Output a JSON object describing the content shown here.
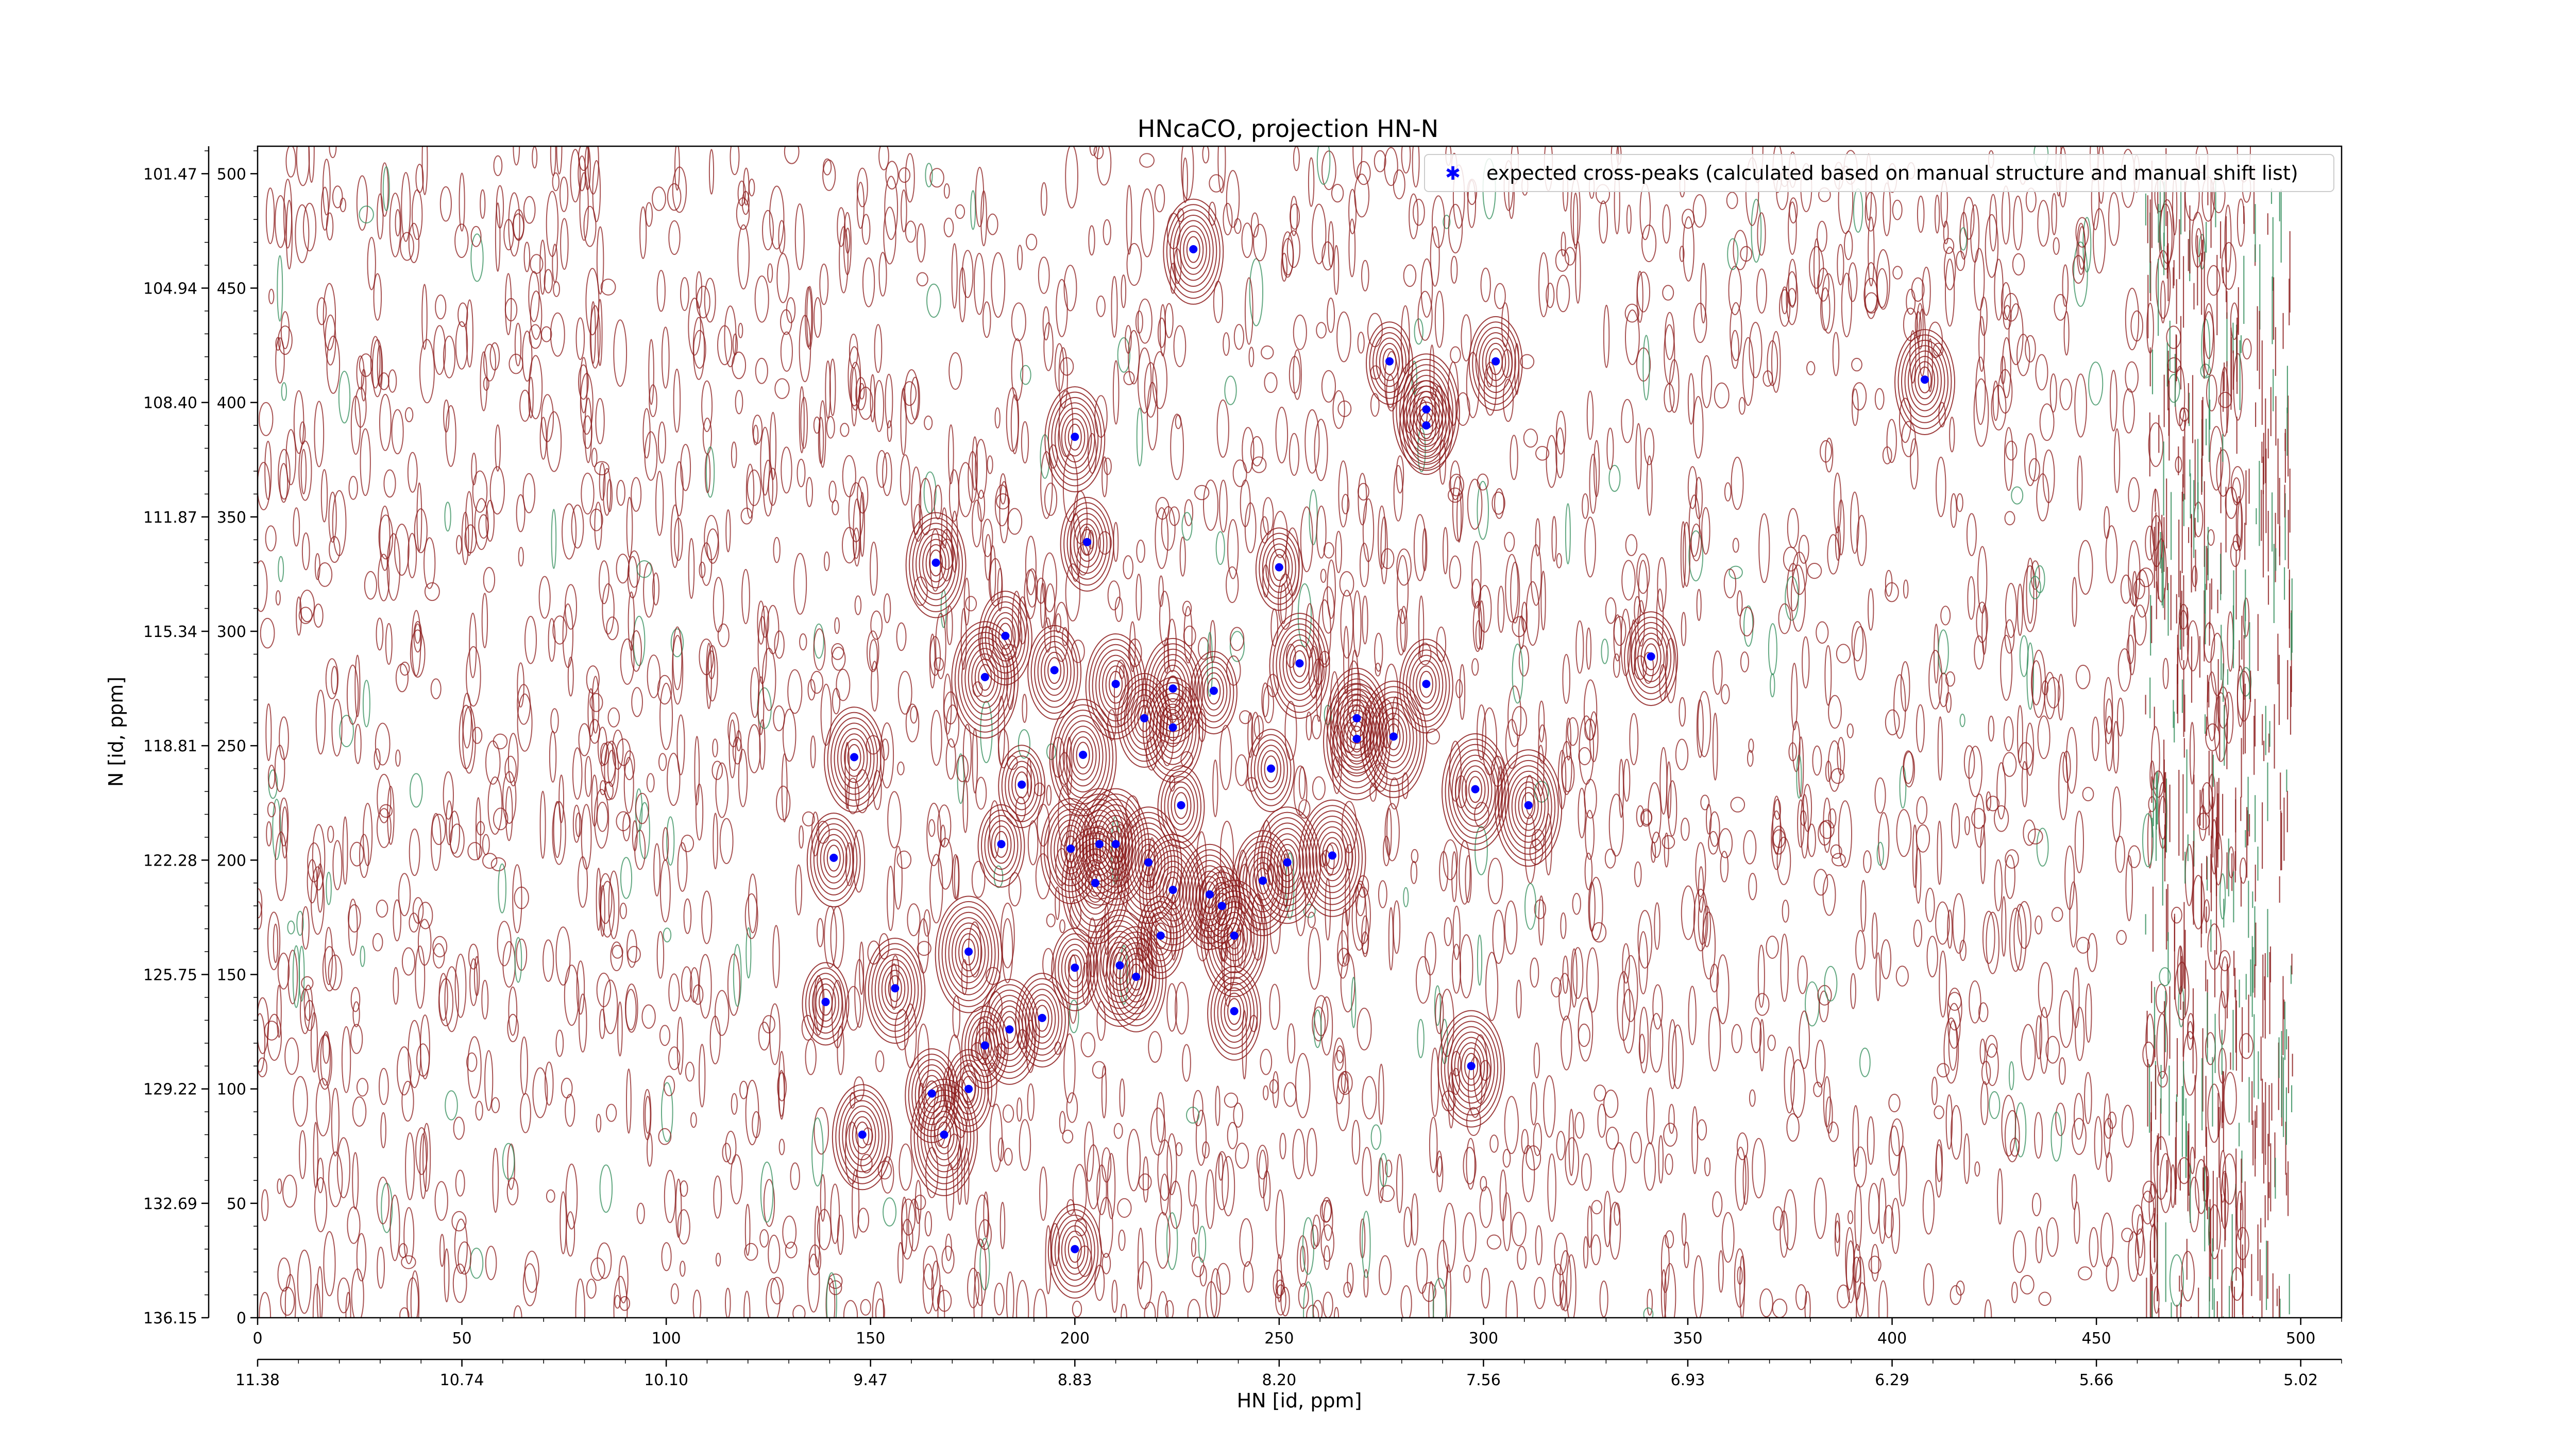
{
  "chart_data": {
    "type": "scatter",
    "title": "HNcaCO, projection HN-N",
    "xlabel": "HN [id, ppm]",
    "ylabel": "N [id, ppm]",
    "xlim": [
      0,
      510
    ],
    "ylim": [
      0,
      512
    ],
    "grid": false,
    "legend_position": "top-right",
    "colors": {
      "marker": "#0000ff",
      "contour_main": "#8b1a1a",
      "contour_alt": "#2e8b57"
    },
    "x_ticks_index": [
      "0",
      "50",
      "100",
      "150",
      "200",
      "250",
      "300",
      "350",
      "400",
      "450",
      "500"
    ],
    "x_ticks_index_values": [
      0,
      50,
      100,
      150,
      200,
      250,
      300,
      350,
      400,
      450,
      500
    ],
    "x_ticks_ppm": [
      "11.38",
      "10.74",
      "10.10",
      "9.47",
      "8.83",
      "8.20",
      "7.56",
      "6.93",
      "6.29",
      "5.66",
      "5.02"
    ],
    "x_ticks_ppm_values": [
      0,
      50,
      100,
      150,
      200,
      250,
      300,
      350,
      400,
      450,
      500
    ],
    "y_ticks_index": [
      "500",
      "450",
      "400",
      "350",
      "300",
      "250",
      "200",
      "150",
      "100",
      "50",
      "0"
    ],
    "y_ticks_index_values": [
      500,
      450,
      400,
      350,
      300,
      250,
      200,
      150,
      100,
      50,
      0
    ],
    "y_ticks_ppm": [
      "101.47",
      "104.94",
      "108.40",
      "111.87",
      "115.34",
      "118.81",
      "122.28",
      "125.75",
      "129.22",
      "132.69",
      "136.15"
    ],
    "y_ticks_ppm_values": [
      500,
      450,
      400,
      350,
      300,
      250,
      200,
      150,
      100,
      50,
      0
    ],
    "series": [
      {
        "name": "expected cross-peaks (calculated based on manual structure and manual shift list)",
        "points": [
          [
            229,
            467
          ],
          [
            277,
            418
          ],
          [
            303,
            418
          ],
          [
            408,
            410
          ],
          [
            286,
            397
          ],
          [
            286,
            390
          ],
          [
            200,
            385
          ],
          [
            203,
            339
          ],
          [
            166,
            330
          ],
          [
            250,
            328
          ],
          [
            183,
            298
          ],
          [
            255,
            286
          ],
          [
            341,
            289
          ],
          [
            195,
            283
          ],
          [
            178,
            280
          ],
          [
            210,
            277
          ],
          [
            286,
            277
          ],
          [
            224,
            275
          ],
          [
            234,
            274
          ],
          [
            217,
            262
          ],
          [
            269,
            262
          ],
          [
            224,
            258
          ],
          [
            269,
            253
          ],
          [
            278,
            254
          ],
          [
            146,
            245
          ],
          [
            202,
            246
          ],
          [
            248,
            240
          ],
          [
            187,
            233
          ],
          [
            298,
            231
          ],
          [
            311,
            224
          ],
          [
            226,
            224
          ],
          [
            182,
            207
          ],
          [
            199,
            205
          ],
          [
            206,
            207
          ],
          [
            210,
            207
          ],
          [
            141,
            201
          ],
          [
            263,
            202
          ],
          [
            205,
            190
          ],
          [
            218,
            199
          ],
          [
            252,
            199
          ],
          [
            246,
            191
          ],
          [
            224,
            187
          ],
          [
            233,
            185
          ],
          [
            236,
            180
          ],
          [
            174,
            160
          ],
          [
            221,
            167
          ],
          [
            239,
            167
          ],
          [
            156,
            144
          ],
          [
            200,
            153
          ],
          [
            211,
            154
          ],
          [
            215,
            149
          ],
          [
            139,
            138
          ],
          [
            239,
            134
          ],
          [
            192,
            131
          ],
          [
            184,
            126
          ],
          [
            178,
            119
          ],
          [
            297,
            110
          ],
          [
            165,
            98
          ],
          [
            174,
            100
          ],
          [
            148,
            80
          ],
          [
            168,
            80
          ],
          [
            200,
            30
          ]
        ]
      }
    ]
  }
}
